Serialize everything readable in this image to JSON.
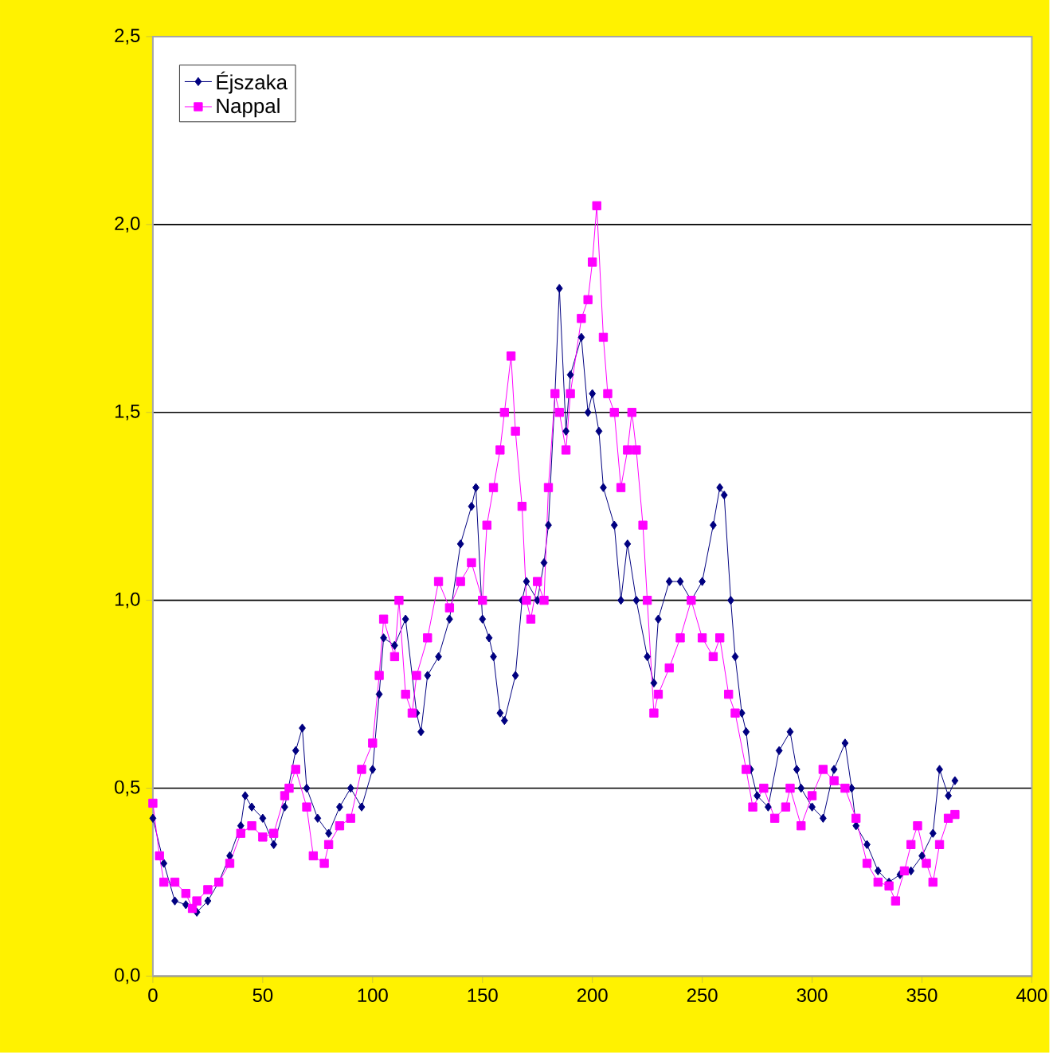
{
  "chart_data": {
    "type": "line",
    "xlim": [
      0,
      400
    ],
    "ylim": [
      0,
      2.5
    ],
    "xticks": [
      0,
      50,
      100,
      150,
      200,
      250,
      300,
      350,
      400
    ],
    "yticks": [
      {
        "value": 0,
        "label": "0,0"
      },
      {
        "value": 0.5,
        "label": "0,5"
      },
      {
        "value": 1,
        "label": "1,0"
      },
      {
        "value": 1.5,
        "label": "1,5"
      },
      {
        "value": 2,
        "label": "2,0"
      },
      {
        "value": 2.5,
        "label": "2,5"
      }
    ],
    "grid": "y",
    "legend": "top left",
    "series": [
      {
        "name": "Éjszaka",
        "color": "#000080",
        "marker": "diamond",
        "x": [
          0,
          5,
          10,
          15,
          20,
          25,
          30,
          35,
          40,
          42,
          45,
          50,
          55,
          60,
          65,
          68,
          70,
          75,
          80,
          85,
          90,
          95,
          100,
          103,
          105,
          110,
          115,
          120,
          122,
          125,
          130,
          135,
          140,
          145,
          147,
          150,
          153,
          155,
          158,
          160,
          165,
          168,
          170,
          175,
          178,
          180,
          183,
          185,
          188,
          190,
          195,
          198,
          200,
          203,
          205,
          210,
          213,
          216,
          220,
          225,
          228,
          230,
          235,
          240,
          245,
          250,
          255,
          258,
          260,
          263,
          265,
          268,
          270,
          272,
          275,
          280,
          285,
          290,
          293,
          295,
          300,
          305,
          310,
          315,
          318,
          320,
          325,
          330,
          335,
          340,
          345,
          350,
          355,
          358,
          362,
          365
        ],
        "values": [
          0.42,
          0.3,
          0.2,
          0.19,
          0.17,
          0.2,
          0.25,
          0.32,
          0.4,
          0.48,
          0.45,
          0.42,
          0.35,
          0.45,
          0.6,
          0.66,
          0.5,
          0.42,
          0.38,
          0.45,
          0.5,
          0.45,
          0.55,
          0.75,
          0.9,
          0.88,
          0.95,
          0.7,
          0.65,
          0.8,
          0.85,
          0.95,
          1.15,
          1.25,
          1.3,
          0.95,
          0.9,
          0.85,
          0.7,
          0.68,
          0.8,
          1.0,
          1.05,
          1.0,
          1.1,
          1.2,
          1.55,
          1.83,
          1.45,
          1.6,
          1.7,
          1.5,
          1.55,
          1.45,
          1.3,
          1.2,
          1.0,
          1.15,
          1.0,
          0.85,
          0.78,
          0.95,
          1.05,
          1.05,
          1.0,
          1.05,
          1.2,
          1.3,
          1.28,
          1.0,
          0.85,
          0.7,
          0.65,
          0.55,
          0.48,
          0.45,
          0.6,
          0.65,
          0.55,
          0.5,
          0.45,
          0.42,
          0.55,
          0.62,
          0.5,
          0.4,
          0.35,
          0.28,
          0.25,
          0.27,
          0.28,
          0.32,
          0.38,
          0.55,
          0.48,
          0.52
        ]
      },
      {
        "name": "Nappal",
        "color": "#ff00ff",
        "marker": "square",
        "x": [
          0,
          3,
          5,
          10,
          15,
          18,
          20,
          25,
          30,
          35,
          40,
          45,
          50,
          55,
          60,
          62,
          65,
          70,
          73,
          78,
          80,
          85,
          90,
          95,
          100,
          103,
          105,
          110,
          112,
          115,
          118,
          120,
          125,
          130,
          135,
          140,
          145,
          150,
          152,
          155,
          158,
          160,
          163,
          165,
          168,
          170,
          172,
          175,
          178,
          180,
          183,
          185,
          188,
          190,
          195,
          198,
          200,
          202,
          205,
          207,
          210,
          213,
          216,
          218,
          220,
          223,
          225,
          228,
          230,
          235,
          240,
          245,
          250,
          255,
          258,
          262,
          265,
          270,
          273,
          278,
          283,
          288,
          290,
          295,
          300,
          305,
          310,
          315,
          320,
          325,
          330,
          335,
          338,
          342,
          345,
          348,
          352,
          355,
          358,
          362,
          365
        ],
        "values": [
          0.46,
          0.32,
          0.25,
          0.25,
          0.22,
          0.18,
          0.2,
          0.23,
          0.25,
          0.3,
          0.38,
          0.4,
          0.37,
          0.38,
          0.48,
          0.5,
          0.55,
          0.45,
          0.32,
          0.3,
          0.35,
          0.4,
          0.42,
          0.55,
          0.62,
          0.8,
          0.95,
          0.85,
          1.0,
          0.75,
          0.7,
          0.8,
          0.9,
          1.05,
          0.98,
          1.05,
          1.1,
          1.0,
          1.2,
          1.3,
          1.4,
          1.5,
          1.65,
          1.45,
          1.25,
          1.0,
          0.95,
          1.05,
          1.0,
          1.3,
          1.55,
          1.5,
          1.4,
          1.55,
          1.75,
          1.8,
          1.9,
          2.05,
          1.7,
          1.55,
          1.5,
          1.3,
          1.4,
          1.5,
          1.4,
          1.2,
          1.0,
          0.7,
          0.75,
          0.82,
          0.9,
          1.0,
          0.9,
          0.85,
          0.9,
          0.75,
          0.7,
          0.55,
          0.45,
          0.5,
          0.42,
          0.45,
          0.5,
          0.4,
          0.48,
          0.55,
          0.52,
          0.5,
          0.42,
          0.3,
          0.25,
          0.24,
          0.2,
          0.28,
          0.35,
          0.4,
          0.3,
          0.25,
          0.35,
          0.42,
          0.43
        ]
      }
    ]
  }
}
